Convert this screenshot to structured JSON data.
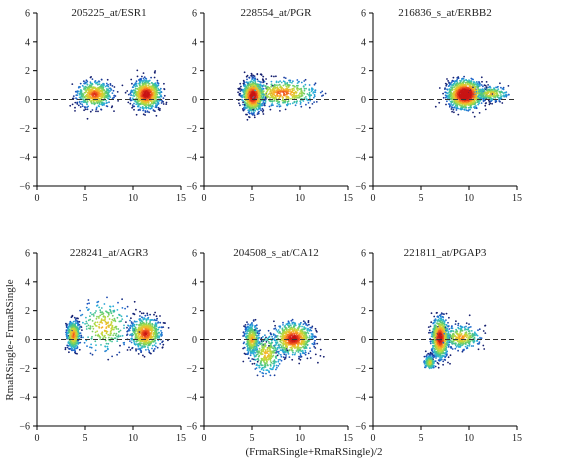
{
  "figure": {
    "ylabel": "RmaRSingle- FrmaRSingle",
    "xlabel": "(FrmaRSingle+RmaRSingle)/2"
  },
  "chart_data": [
    {
      "type": "scatter",
      "title": "205225_at/ESR1",
      "xlim": [
        0,
        15
      ],
      "ylim": [
        -6,
        6
      ],
      "xticks": [
        0,
        5,
        10,
        15
      ],
      "yticks": [
        -6,
        -4,
        -2,
        0,
        2,
        4,
        6
      ],
      "reference_line_y": 0,
      "density_clusters": [
        {
          "x": 6.0,
          "y": 0.35,
          "sx": 0.9,
          "sy": 0.45,
          "weight": 0.4
        },
        {
          "x": 11.4,
          "y": 0.35,
          "sx": 0.75,
          "sy": 0.5,
          "weight": 0.6
        }
      ],
      "x_range": [
        3.3,
        13.8
      ],
      "y_range": [
        -1.6,
        2.2
      ]
    },
    {
      "type": "scatter",
      "title": "228554_at/PGR",
      "xlim": [
        0,
        15
      ],
      "ylim": [
        -6,
        6
      ],
      "xticks": [
        0,
        5,
        10,
        15
      ],
      "yticks": [
        -6,
        -4,
        -2,
        0,
        2,
        4,
        6
      ],
      "reference_line_y": 0,
      "density_clusters": [
        {
          "x": 5.1,
          "y": 0.25,
          "sx": 0.55,
          "sy": 0.55,
          "weight": 0.65
        },
        {
          "x": 8.2,
          "y": 0.45,
          "sx": 1.8,
          "sy": 0.45,
          "weight": 0.35
        }
      ],
      "x_range": [
        3.5,
        12.8
      ],
      "y_range": [
        -1.8,
        1.9
      ]
    },
    {
      "type": "scatter",
      "title": "216836_s_at/ERBB2",
      "xlim": [
        0,
        15
      ],
      "ylim": [
        -6,
        6
      ],
      "xticks": [
        0,
        5,
        10,
        15
      ],
      "yticks": [
        -6,
        -4,
        -2,
        0,
        2,
        4,
        6
      ],
      "reference_line_y": 0,
      "density_clusters": [
        {
          "x": 9.6,
          "y": 0.35,
          "sx": 0.9,
          "sy": 0.5,
          "weight": 0.8
        },
        {
          "x": 12.3,
          "y": 0.4,
          "sx": 0.9,
          "sy": 0.25,
          "weight": 0.2
        }
      ],
      "x_range": [
        6.2,
        14.2
      ],
      "y_range": [
        -2.1,
        1.6
      ]
    },
    {
      "type": "scatter",
      "title": "228241_at/AGR3",
      "xlim": [
        0,
        15
      ],
      "ylim": [
        -6,
        6
      ],
      "xticks": [
        0,
        5,
        10,
        15
      ],
      "yticks": [
        -6,
        -4,
        -2,
        0,
        2,
        4,
        6
      ],
      "reference_line_y": 0,
      "density_clusters": [
        {
          "x": 3.8,
          "y": 0.3,
          "sx": 0.35,
          "sy": 0.5,
          "weight": 0.35
        },
        {
          "x": 7.0,
          "y": 0.9,
          "sx": 1.4,
          "sy": 0.9,
          "weight": 0.2
        },
        {
          "x": 11.3,
          "y": 0.4,
          "sx": 0.8,
          "sy": 0.55,
          "weight": 0.45
        }
      ],
      "x_range": [
        2.8,
        13.8
      ],
      "y_range": [
        -1.5,
        3.1
      ]
    },
    {
      "type": "scatter",
      "title": "204508_s_at/CA12",
      "xlim": [
        0,
        15
      ],
      "ylim": [
        -6,
        6
      ],
      "xticks": [
        0,
        5,
        10,
        15
      ],
      "yticks": [
        -6,
        -4,
        -2,
        0,
        2,
        4,
        6
      ],
      "reference_line_y": 0,
      "density_clusters": [
        {
          "x": 5.0,
          "y": 0.0,
          "sx": 0.4,
          "sy": 0.55,
          "weight": 0.25
        },
        {
          "x": 9.3,
          "y": 0.05,
          "sx": 1.0,
          "sy": 0.55,
          "weight": 0.55
        },
        {
          "x": 6.5,
          "y": -1.0,
          "sx": 0.8,
          "sy": 0.7,
          "weight": 0.2
        }
      ],
      "x_range": [
        4.0,
        12.8
      ],
      "y_range": [
        -2.6,
        1.4
      ]
    },
    {
      "type": "scatter",
      "title": "221811_at/PGAP3",
      "xlim": [
        0,
        15
      ],
      "ylim": [
        -6,
        6
      ],
      "xticks": [
        0,
        5,
        10,
        15
      ],
      "yticks": [
        -6,
        -4,
        -2,
        0,
        2,
        4,
        6
      ],
      "reference_line_y": 0,
      "density_clusters": [
        {
          "x": 7.0,
          "y": 0.1,
          "sx": 0.45,
          "sy": 0.7,
          "weight": 0.6
        },
        {
          "x": 9.2,
          "y": 0.15,
          "sx": 1.0,
          "sy": 0.4,
          "weight": 0.25
        },
        {
          "x": 5.9,
          "y": -1.6,
          "sx": 0.3,
          "sy": 0.25,
          "weight": 0.15
        }
      ],
      "x_range": [
        5.3,
        11.8
      ],
      "y_range": [
        -2.0,
        1.9
      ]
    }
  ]
}
